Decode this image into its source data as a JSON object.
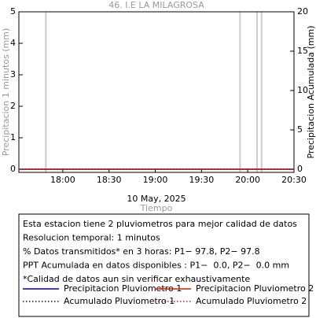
{
  "chart_data": {
    "type": "line",
    "title": "46. I.E LA MILAGROSA",
    "xlabel_date": "10 May, 2025",
    "xlabel": "Tiempo",
    "ylabel": "Precipitacion 1 minutos (mm)",
    "y2label": "Precipitacion Acumulada (mm)",
    "x": [
      1051.5,
      1230
    ],
    "xlim": [
      1051.5,
      1230
    ],
    "xticks": [
      {
        "value": 1080,
        "label": "18:00"
      },
      {
        "value": 1110,
        "label": "18:30"
      },
      {
        "value": 1140,
        "label": "19:00"
      },
      {
        "value": 1170,
        "label": "19:30"
      },
      {
        "value": 1200,
        "label": "20:00"
      },
      {
        "value": 1230,
        "label": "20:30"
      }
    ],
    "ylim": [
      -0.1,
      5
    ],
    "yticks": [
      0,
      1,
      2,
      3,
      4,
      5
    ],
    "y2lim": [
      -0.4,
      20
    ],
    "y2ticks": [
      0,
      5,
      10,
      15,
      20
    ],
    "gap_markers_x": [
      1069,
      1195,
      1206,
      1209
    ],
    "gap_marker_color": "#cccccc",
    "series": [
      {
        "name": "Precipitacion Pluviometro 1",
        "color": "#000099",
        "dash": "solid",
        "values": [
          0,
          0
        ]
      },
      {
        "name": "Precipitacion Pluviometro 2",
        "color": "#cc2200",
        "dash": "solid",
        "values": [
          0,
          0
        ]
      },
      {
        "name": "Acumulado Pluviometro 1",
        "color": "#000099",
        "dash": "dotted",
        "axis": "y2",
        "values": [
          0,
          0
        ]
      },
      {
        "name": "Acumulado Pluviometro 2",
        "color": "#cc2200",
        "dash": "dotted",
        "axis": "y2",
        "values": [
          0,
          0
        ]
      }
    ],
    "notes": [
      "Esta estacion tiene 2 pluviometros para mejor calidad de datos",
      "Resolucion temporal: 1 minutos",
      "% Datos transmitidos* en 3 horas: P1− 97.8, P2− 97.8",
      "PPT Acumulada en datos disponibles : P1−  0.0, P2−  0.0 mm",
      "*Calidad de datos aun sin verificar exhaustivamente"
    ]
  }
}
